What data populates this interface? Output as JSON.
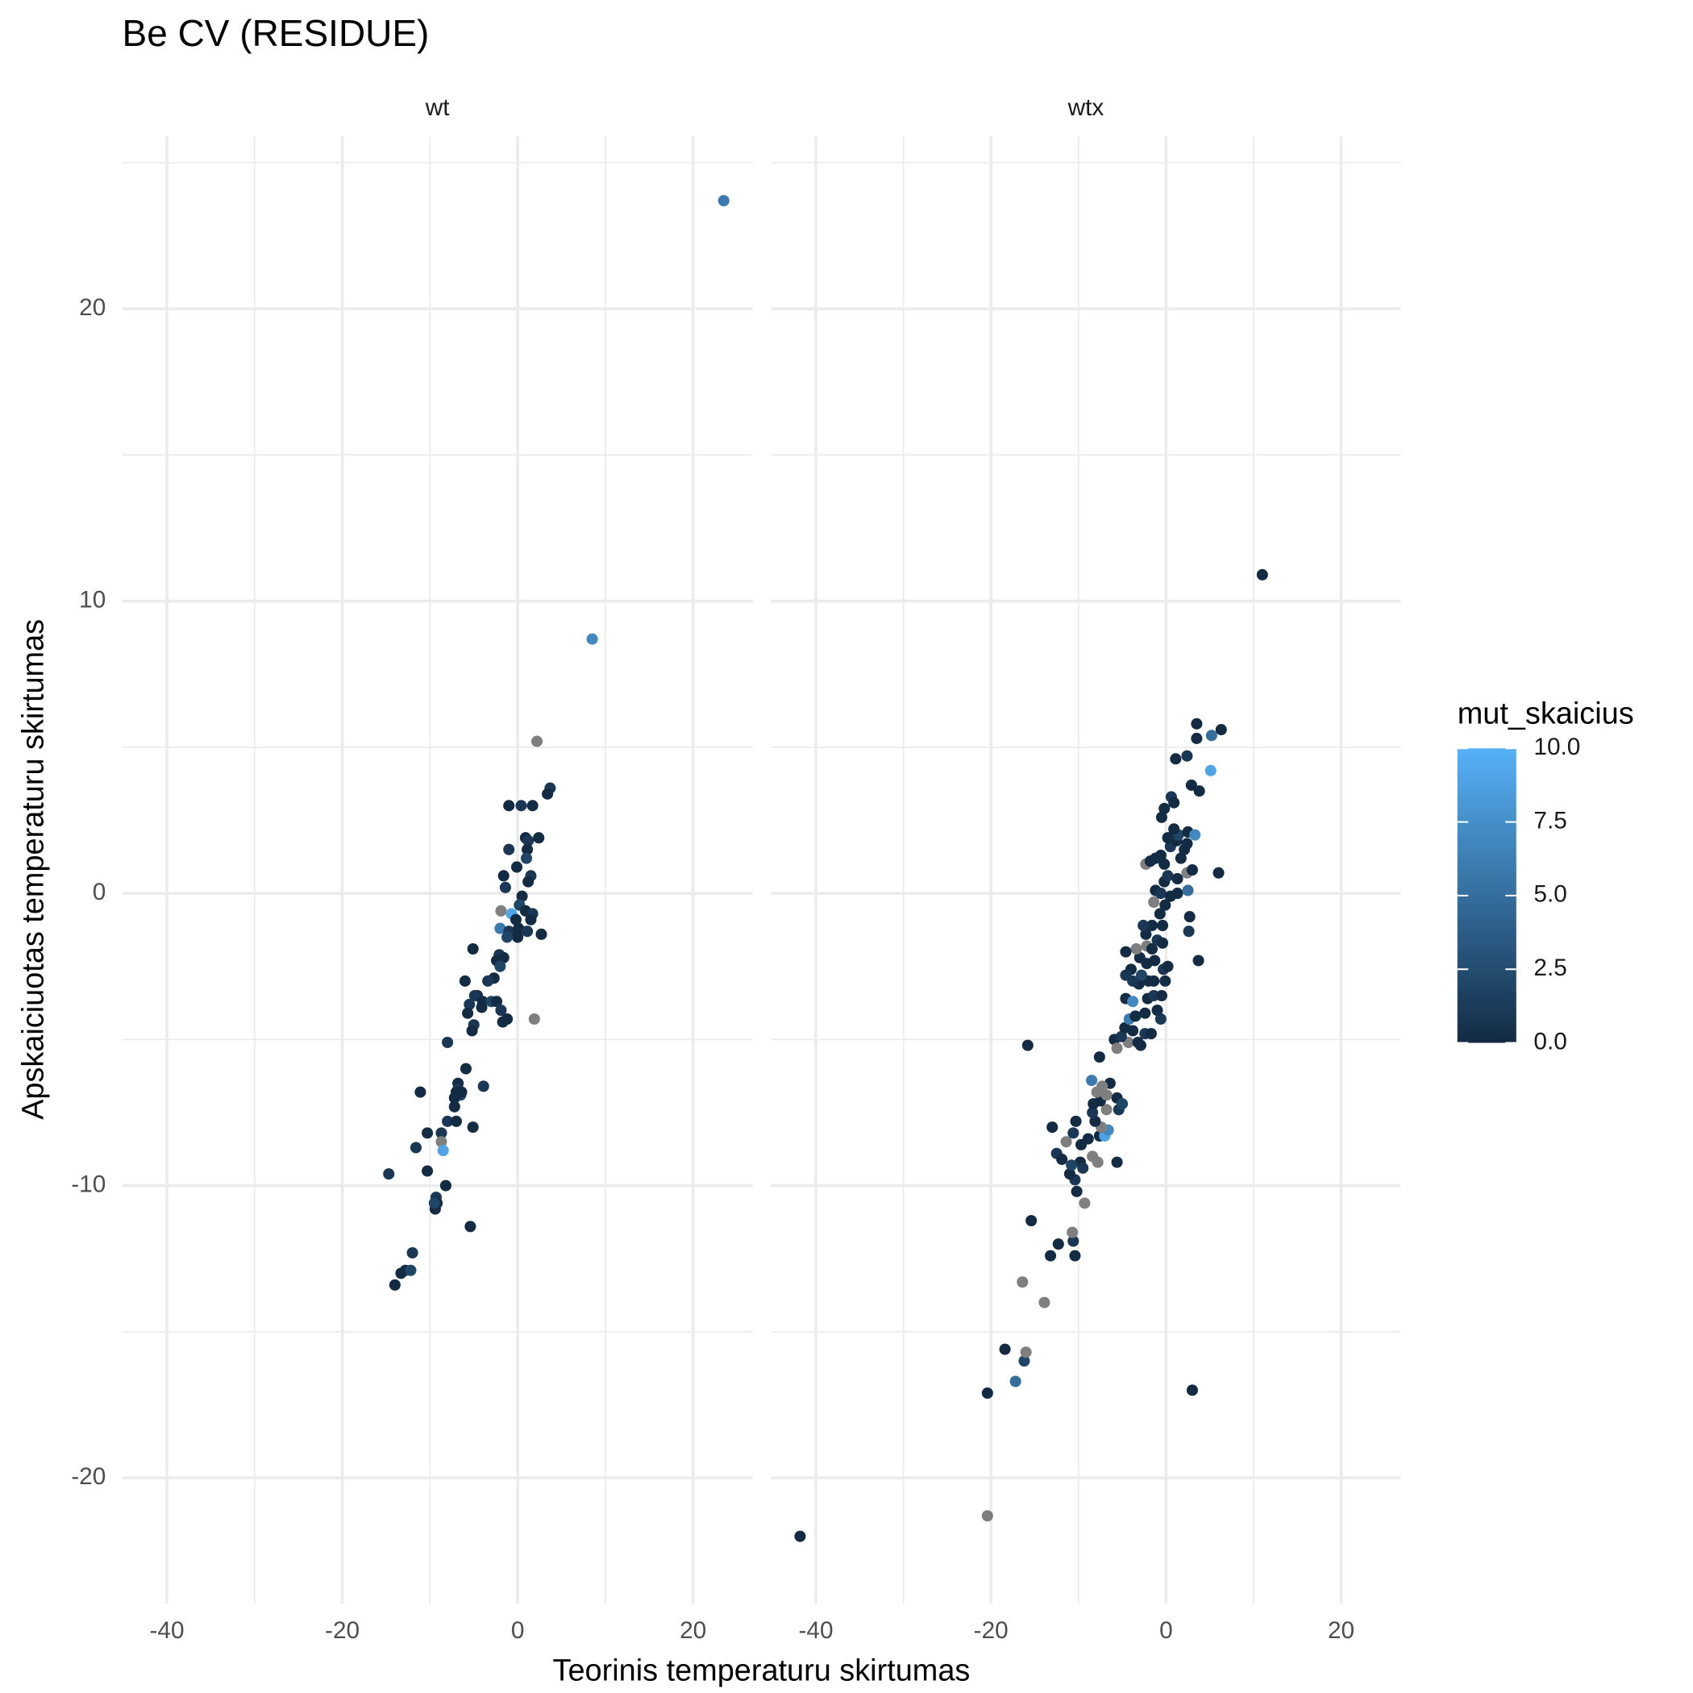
{
  "chart_data": {
    "type": "scatter",
    "title": "Be CV (RESIDUE)",
    "xlabel": "Teorinis temperaturu skirtumas",
    "ylabel": "Apskaiciuotas temperaturu skirtumas",
    "xlim": [
      -45.1,
      26.8
    ],
    "ylim": [
      -24.3,
      25.9
    ],
    "xticks": [
      -40,
      -20,
      0,
      20
    ],
    "yticks": [
      -20,
      -10,
      0,
      10,
      20
    ],
    "xminor": [
      -30,
      -10,
      10
    ],
    "yminor": [
      -15,
      -5,
      5,
      15,
      25
    ],
    "grid": true,
    "colorbar": {
      "title": "mut_skaicius",
      "lim": [
        0,
        10
      ],
      "ticks": [
        {
          "value": 0,
          "label": "0.0"
        },
        2.5,
        {
          "value": 5,
          "label": "5.0"
        },
        7.5,
        {
          "value": 10,
          "label": "10.0"
        }
      ],
      "low_color": "#132b43",
      "high_color": "#56b1f7",
      "na_color": "#7f7f7f"
    },
    "facets": [
      {
        "label": "wt",
        "x": [
          23.5,
          8.5,
          2.2,
          3.7,
          3.4,
          -1,
          0.4,
          1.7,
          0.9,
          1.2,
          1.1,
          1.0,
          -1,
          2.4,
          -0.1,
          1.5,
          1.2,
          -1.6,
          -1.4,
          0.5,
          0.2,
          -1.9,
          -0.7,
          0.9,
          1.7,
          1.5,
          -0.2,
          -2,
          -1,
          0.1,
          0,
          1.1,
          2.7,
          -1.2,
          -5.1,
          -2.1,
          -1.6,
          -2.4,
          -2,
          -2.7,
          -3.4,
          -6,
          1.9,
          -4.6,
          -4.9,
          -4,
          -3,
          -2.4,
          -5.5,
          -4.1,
          -1.9,
          -1.2,
          -1.7,
          -5.7,
          -5,
          -5.2,
          -8,
          -5.9,
          -6.8,
          -6.8,
          -7.0,
          -6.5,
          -7.2,
          -6.4,
          -3.9,
          -11.1,
          -7.2,
          -8,
          -7,
          -5.1,
          -10.3,
          -8.7,
          -8.7,
          -8.5,
          -11.6,
          -10.3,
          -14.7,
          -8.2,
          -9.3,
          -9.2,
          -9.4,
          -9.5,
          -5.4,
          -12,
          -12.8,
          -13.3,
          -12.2,
          -14
        ],
        "y": [
          23.7,
          8.7,
          5.2,
          3.6,
          3.4,
          3,
          3,
          3,
          1.9,
          1.8,
          1.5,
          1.2,
          1.5,
          1.9,
          0.9,
          0.6,
          0.4,
          0.6,
          0.2,
          -0.1,
          -0.4,
          -0.6,
          -0.7,
          -0.6,
          -0.7,
          -0.9,
          -0.9,
          -1.2,
          -1.3,
          -1.2,
          -1.5,
          -1.3,
          -1.4,
          -1.5,
          -1.9,
          -2.1,
          -2.2,
          -2.3,
          -2.5,
          -2.9,
          -3,
          -3,
          -4.3,
          -3.5,
          -3.5,
          -3.7,
          -3.7,
          -3.7,
          -3.8,
          -3.9,
          -4,
          -4.3,
          -4.4,
          -4.1,
          -4.5,
          -4.7,
          -5.1,
          -6,
          -6.5,
          -6.7,
          -6.8,
          -6.9,
          -7,
          -6.8,
          -6.6,
          -6.8,
          -7.3,
          -7.8,
          -7.8,
          -8,
          -8.2,
          -8.2,
          -8.5,
          -8.8,
          -8.7,
          -9.5,
          -9.6,
          -10,
          -10.4,
          -10.6,
          -10.8,
          -10.6,
          -11.4,
          -12.3,
          -12.9,
          -13,
          -12.9,
          -13.4
        ],
        "mut_skaicius": [
          6,
          7,
          null,
          1,
          0,
          0,
          1,
          0,
          0,
          1,
          0,
          2,
          1,
          0,
          0,
          1,
          0,
          0,
          1,
          0,
          2,
          null,
          9,
          0,
          1,
          0,
          0,
          6,
          1,
          0,
          0,
          1,
          0,
          2,
          0,
          1,
          0,
          0,
          2,
          0,
          1,
          0,
          null,
          0,
          1,
          0,
          2,
          0,
          1,
          0,
          1,
          0,
          0,
          0,
          1,
          0,
          1,
          0,
          0,
          1,
          0,
          2,
          0,
          0,
          1,
          0,
          0,
          1,
          0,
          0,
          0,
          1,
          null,
          9,
          1,
          0,
          1,
          0,
          1,
          0,
          0,
          2,
          0,
          1,
          0,
          0,
          2,
          0
        ]
      },
      {
        "label": "wtx",
        "x": [
          11,
          -41.8,
          -20.4,
          3,
          -20.4,
          -17.2,
          -16.2,
          -16,
          -18.4,
          -13.9,
          -16.4,
          -13.2,
          -12.3,
          -10.6,
          -10.7,
          -10.4,
          -15.4,
          -9.3,
          -10.2,
          -10.4,
          -11,
          -15.8,
          6,
          3.7,
          6.3,
          3.5,
          5.2,
          5.1,
          1.1,
          2.4,
          3.5,
          -13,
          -12.5,
          -11.4,
          -10.3,
          -10.6,
          -9.7,
          -9.8,
          -10.8,
          -11.9,
          -9.5,
          -8.4,
          -7.8,
          -8.9,
          -7.6,
          -7,
          -6.6,
          -5.6,
          -7.4,
          -6.8,
          -8.1,
          -8.4,
          -7.5,
          -8.3,
          -5.4,
          -5.6,
          -5,
          -6.4,
          -7.9,
          -6.8,
          -8.5,
          -7.3,
          -7.6,
          -4.3,
          -5.9,
          -5.6,
          -5.1,
          -4.7,
          -3.8,
          -2.4,
          -2.9,
          -3.2,
          -1.7,
          -4.2,
          -3.5,
          -2.4,
          -0.6,
          -1,
          -4.6,
          -3.8,
          -2.1,
          -1.4,
          -0.5,
          -3.1,
          -3.8,
          -2,
          -2.8,
          -1.4,
          -0.1,
          -0.3,
          0.2,
          -4,
          -4.6,
          -2.2,
          -1.3,
          -3,
          -3.4,
          -4.6,
          -2.2,
          -1.6,
          -1,
          -0.4,
          -2.3,
          -1.6,
          -2.6,
          -0.4,
          2.6,
          2.7,
          -0.7,
          -0.1,
          -1.4,
          -1.2,
          -0.6,
          0.5,
          1.3,
          2.5,
          -0.2,
          0.2,
          1.3,
          2.4,
          3,
          -0.2,
          1.7,
          2.1,
          0.5,
          1.2,
          2.4,
          1.4,
          0.2,
          0.9,
          2.5,
          3.3,
          -2.3,
          -1.8,
          -1.2,
          -0.6,
          -0.5,
          -0.2,
          0.6,
          0.9,
          2.9,
          3.8
        ],
        "y": [
          10.9,
          -22,
          -21.3,
          -17,
          -17.1,
          -16.7,
          -16,
          -15.7,
          -15.6,
          -14,
          -13.3,
          -12.4,
          -12,
          -11.9,
          -11.6,
          -12.4,
          -11.2,
          -10.6,
          -10.2,
          -9.8,
          -9.6,
          -5.2,
          0.7,
          -2.3,
          5.6,
          5.8,
          5.4,
          4.2,
          4.6,
          4.7,
          5.3,
          -8,
          -8.9,
          -8.5,
          -7.8,
          -8.2,
          -8.6,
          -9.2,
          -9.3,
          -9.1,
          -9.4,
          -9,
          -9.2,
          -8.4,
          -8.3,
          -8.3,
          -8.1,
          -9.2,
          -8,
          -7.4,
          -7.8,
          -7.5,
          -7.1,
          -7.2,
          -7.4,
          -7,
          -7.2,
          -6.5,
          -6.8,
          -6.9,
          -6.4,
          -6.6,
          -5.6,
          -5.1,
          -5,
          -5.3,
          -4.9,
          -4.6,
          -4.7,
          -4.8,
          -5.2,
          -5.1,
          -4.8,
          -4.3,
          -4.2,
          -4.1,
          -4.3,
          -4,
          -3.6,
          -3.7,
          -3.6,
          -3.5,
          -3.5,
          -3.1,
          -3,
          -3,
          -2.8,
          -3,
          -3,
          -2.6,
          -2.5,
          -2.6,
          -2.8,
          -2.4,
          -2.3,
          -2.2,
          -1.9,
          -2,
          -1.8,
          -1.9,
          -1.6,
          -1.7,
          -1.4,
          -1.1,
          -1.1,
          -1.1,
          -1.3,
          -0.8,
          -0.7,
          -0.4,
          -0.3,
          0.1,
          0,
          -0.1,
          0,
          0.1,
          0.4,
          0.6,
          0.5,
          0.7,
          0.8,
          1.0,
          1.2,
          1.5,
          1.6,
          1.8,
          1.7,
          2,
          1.9,
          2.2,
          2.1,
          2,
          1,
          1.1,
          1.2,
          1.3,
          2.6,
          2.9,
          3.3,
          3.1,
          3.7,
          3.5
        ],
        "mut_skaicius": [
          0,
          0,
          null,
          0,
          0,
          5,
          2,
          null,
          0,
          null,
          null,
          0,
          0,
          1,
          null,
          0,
          0,
          null,
          0,
          1,
          0,
          0,
          0,
          0,
          0,
          0,
          5,
          9,
          0,
          1,
          0,
          0,
          1,
          null,
          0,
          1,
          0,
          0,
          2,
          0,
          1,
          null,
          null,
          0,
          0,
          9,
          7,
          0,
          null,
          null,
          0,
          1,
          0,
          0,
          1,
          0,
          2,
          0,
          null,
          null,
          6,
          null,
          0,
          null,
          0,
          null,
          1,
          0,
          0,
          1,
          0,
          0,
          0,
          6,
          0,
          0,
          1,
          0,
          0,
          7,
          0,
          1,
          0,
          0,
          1,
          0,
          2,
          0,
          0,
          1,
          0,
          0,
          1,
          0,
          0,
          0,
          null,
          0,
          null,
          0,
          1,
          0,
          0,
          0,
          1,
          0,
          1,
          0,
          0,
          0,
          null,
          0,
          1,
          0,
          0,
          5,
          0,
          1,
          0,
          null,
          0,
          0,
          0,
          0,
          1,
          0,
          0,
          2,
          0,
          0,
          0,
          7,
          null,
          0,
          0,
          0,
          0,
          0,
          1,
          0,
          0,
          0
        ]
      }
    ]
  }
}
